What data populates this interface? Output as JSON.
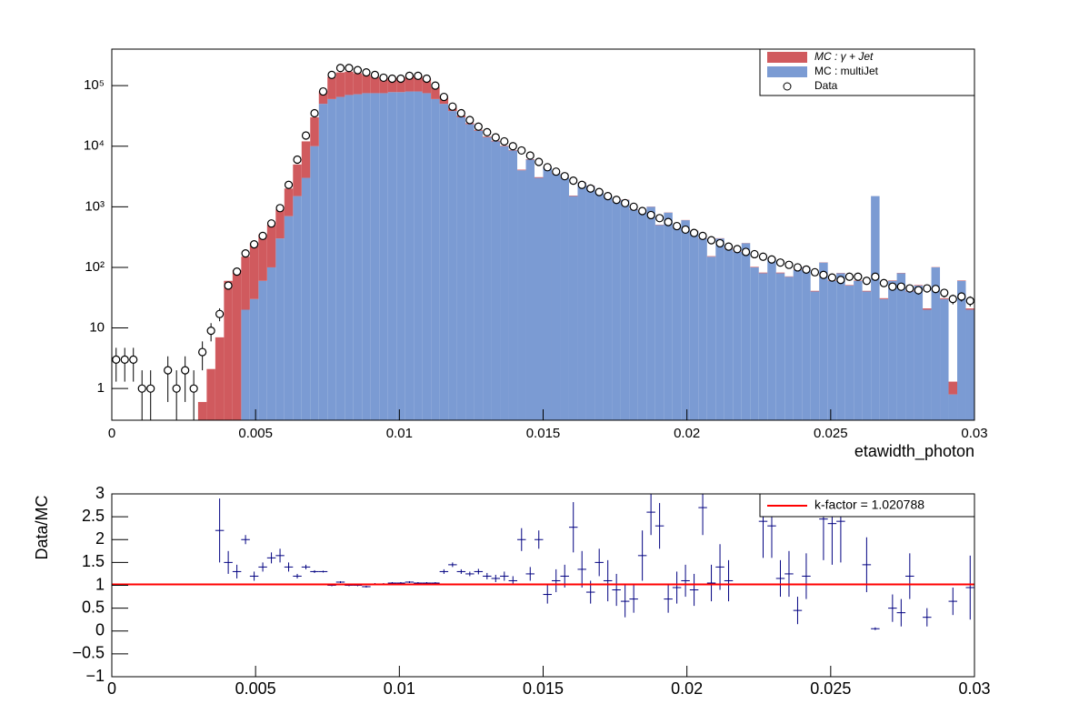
{
  "chart_data": [
    {
      "type": "histogram",
      "xlabel": "etawidth_photon",
      "log_y": true,
      "legend": "top-right",
      "xlim": [
        0,
        0.03
      ],
      "xticks": [
        0,
        0.005,
        0.01,
        0.015,
        0.02,
        0.025,
        0.03
      ],
      "ylim": [
        0.3,
        400000
      ],
      "yticks": [
        1,
        10,
        {
          "value": 100,
          "label": "10²"
        },
        {
          "value": 1000,
          "label": "10³"
        },
        {
          "value": 10000,
          "label": "10⁴"
        },
        {
          "value": 100000,
          "label": "10⁵"
        }
      ],
      "bins": [
        0,
        0.0003,
        0.0006,
        0.0009,
        0.0012,
        0.0015,
        0.0018,
        0.0021,
        0.0024,
        0.0027,
        0.003,
        0.0033,
        0.0036,
        0.0039,
        0.0042,
        0.0045,
        0.0048,
        0.0051,
        0.0054,
        0.0057,
        0.006,
        0.0063,
        0.0066,
        0.0069,
        0.0072,
        0.0075,
        0.0078,
        0.0081,
        0.0084,
        0.0087,
        0.009,
        0.0093,
        0.0096,
        0.0099,
        0.0102,
        0.0105,
        0.0108,
        0.0111,
        0.0114,
        0.0117,
        0.012,
        0.0123,
        0.0126,
        0.0129,
        0.0132,
        0.0135,
        0.0138,
        0.0141,
        0.0144,
        0.0147,
        0.015,
        0.0153,
        0.0156,
        0.0159,
        0.0162,
        0.0165,
        0.0168,
        0.0171,
        0.0174,
        0.0177,
        0.018,
        0.0183,
        0.0186,
        0.0189,
        0.0192,
        0.0195,
        0.0198,
        0.0201,
        0.0204,
        0.0207,
        0.021,
        0.0213,
        0.0216,
        0.0219,
        0.0222,
        0.0225,
        0.0228,
        0.0231,
        0.0234,
        0.0237,
        0.024,
        0.0243,
        0.0246,
        0.0249,
        0.0252,
        0.0255,
        0.0258,
        0.0261,
        0.0264,
        0.0267,
        0.027,
        0.0273,
        0.0276,
        0.0279,
        0.0282,
        0.0285,
        0.0288,
        0.0291,
        0.0294,
        0.0297,
        0.03
      ],
      "series": [
        {
          "name": "MC : multiJet",
          "color": "#7b9bd3",
          "values": [
            0,
            0,
            0,
            0,
            0,
            0,
            0,
            0,
            0,
            0,
            0,
            0,
            0,
            0,
            0,
            20,
            30,
            60,
            100,
            300,
            700,
            1500,
            3000,
            10000,
            50000,
            60000,
            65000,
            70000,
            72000,
            75000,
            75000,
            75000,
            78000,
            78000,
            80000,
            80000,
            75000,
            60000,
            50000,
            38000,
            30000,
            23000,
            18000,
            14000,
            12000,
            10000,
            8500,
            4000,
            6000,
            3000,
            4500,
            3500,
            3000,
            1500,
            2500,
            2200,
            1800,
            1500,
            1200,
            1300,
            900,
            800,
            1000,
            500,
            800,
            450,
            600,
            400,
            300,
            150,
            300,
            200,
            180,
            250,
            100,
            80,
            140,
            80,
            70,
            90,
            100,
            40,
            120,
            60,
            80,
            50,
            60,
            40,
            1500,
            30,
            60,
            80,
            40,
            50,
            20,
            100,
            30,
            0.8,
            60,
            20
          ]
        },
        {
          "name": "MC : γ + Jet",
          "color": "#d05a5e",
          "values": [
            0,
            0,
            0,
            0,
            0,
            0,
            0,
            0,
            0,
            0,
            0.6,
            2.1,
            7,
            60,
            90,
            130,
            220,
            290,
            400,
            600,
            1300,
            3500,
            9000,
            20000,
            30000,
            80000,
            100000,
            100000,
            88000,
            75000,
            65000,
            60000,
            57000,
            57000,
            60000,
            65000,
            55000,
            35000,
            15000,
            5000,
            2000,
            1000,
            600,
            400,
            300,
            200,
            150,
            100,
            100,
            80,
            60,
            50,
            40,
            30,
            30,
            25,
            20,
            15,
            15,
            12,
            10,
            10,
            8,
            6,
            6,
            5,
            5,
            4,
            4,
            3,
            3,
            3,
            2,
            2,
            2,
            2,
            2,
            2,
            1,
            1,
            1,
            1,
            1,
            1,
            1,
            1,
            1,
            1,
            1,
            1,
            1,
            1,
            1,
            1,
            1,
            1,
            1,
            0.5,
            1,
            1
          ]
        },
        {
          "name": "Data",
          "color": "#000000",
          "marker": "open-circle",
          "values": [
            3,
            3,
            3,
            1,
            1,
            null,
            2,
            1,
            2,
            1,
            4,
            9,
            17,
            50,
            85,
            170,
            240,
            330,
            530,
            950,
            2300,
            6000,
            15000,
            35000,
            80000,
            150000,
            195000,
            195000,
            180000,
            165000,
            150000,
            135000,
            130000,
            130000,
            145000,
            145000,
            130000,
            100000,
            65000,
            45000,
            35000,
            27000,
            21000,
            17000,
            14000,
            12000,
            10000,
            8500,
            7000,
            5500,
            4500,
            3800,
            3200,
            2700,
            2300,
            2000,
            1750,
            1500,
            1300,
            1150,
            1000,
            850,
            730,
            650,
            560,
            480,
            420,
            370,
            330,
            280,
            250,
            220,
            200,
            180,
            165,
            150,
            135,
            120,
            110,
            100,
            92,
            83,
            75,
            68,
            62,
            70,
            70,
            60,
            70,
            55,
            48,
            48,
            45,
            42,
            45,
            44,
            38,
            30,
            33,
            28
          ],
          "errors": [
            1.7,
            1.7,
            1.7,
            1,
            1,
            null,
            1.4,
            1,
            1.4,
            1,
            2,
            3,
            4.1,
            7,
            9.2,
            13,
            15.5,
            18,
            23,
            31,
            48,
            77,
            122,
            187,
            283,
            387,
            442,
            442,
            424,
            406,
            387,
            367,
            361,
            361,
            381,
            381,
            361,
            316,
            255,
            212,
            187,
            164,
            145,
            130,
            118,
            110,
            100,
            92,
            84,
            74,
            67,
            62,
            57,
            52,
            48,
            45,
            42,
            39,
            36,
            34,
            32,
            29,
            27,
            25,
            24,
            22,
            20,
            19,
            18,
            17,
            16,
            15,
            14,
            13,
            13,
            12,
            12,
            11,
            10,
            10,
            9.6,
            9.1,
            8.7,
            8.2,
            7.9,
            8.4,
            8.4,
            7.7,
            8.4,
            7.4,
            6.9,
            6.9,
            6.7,
            6.5,
            6.7,
            6.6,
            6.2,
            5.5,
            5.7,
            5.3
          ]
        }
      ]
    },
    {
      "type": "errorbar",
      "ylabel": "Data/MC",
      "legend": "top-right",
      "color": "#000080",
      "xlim": [
        0,
        0.03
      ],
      "xticks": [
        0,
        0.005,
        0.01,
        0.015,
        0.02,
        0.025,
        0.03
      ],
      "ylim": [
        -1,
        3
      ],
      "yticks": [
        {
          "value": -1,
          "label": "−1"
        },
        {
          "value": -0.5,
          "label": "−0.5"
        },
        0,
        0.5,
        1,
        1.5,
        2,
        2.5,
        3
      ],
      "xerr": 0.00015,
      "x": [
        0.00375,
        0.00405,
        0.00435,
        0.00465,
        0.00495,
        0.00525,
        0.00555,
        0.00585,
        0.00615,
        0.00645,
        0.00675,
        0.00705,
        0.00735,
        0.00765,
        0.00795,
        0.00825,
        0.00855,
        0.00885,
        0.00915,
        0.00945,
        0.00975,
        0.01005,
        0.01035,
        0.01065,
        0.01095,
        0.01125,
        0.01155,
        0.01185,
        0.01215,
        0.01245,
        0.01275,
        0.01305,
        0.01335,
        0.01365,
        0.01395,
        0.01425,
        0.01455,
        0.01485,
        0.01515,
        0.01545,
        0.01575,
        0.01605,
        0.01635,
        0.01665,
        0.01695,
        0.01725,
        0.01755,
        0.01785,
        0.01815,
        0.01845,
        0.01875,
        0.01905,
        0.01935,
        0.01965,
        0.01995,
        0.02025,
        0.02055,
        0.02085,
        0.02115,
        0.02145,
        0.02265,
        0.02295,
        0.02325,
        0.02355,
        0.02385,
        0.02415,
        0.02475,
        0.02505,
        0.02535,
        0.02625,
        0.02655,
        0.02715,
        0.02745,
        0.02775,
        0.02835,
        0.02925,
        0.02985
      ],
      "values": [
        2.2,
        1.5,
        1.3,
        2.0,
        1.2,
        1.4,
        1.6,
        1.65,
        1.4,
        1.2,
        1.4,
        1.3,
        1.3,
        1.0,
        1.07,
        1.0,
        1.0,
        0.97,
        1.03,
        1.03,
        1.05,
        1.05,
        1.07,
        1.05,
        1.05,
        1.05,
        1.3,
        1.45,
        1.3,
        1.25,
        1.3,
        1.2,
        1.15,
        1.2,
        1.1,
        2.0,
        1.25,
        2.0,
        0.8,
        1.1,
        1.2,
        2.27,
        1.35,
        0.85,
        1.5,
        1.1,
        0.9,
        0.65,
        0.7,
        1.65,
        2.6,
        2.3,
        0.7,
        0.95,
        1.1,
        0.9,
        2.7,
        1.05,
        1.4,
        1.1,
        2.4,
        2.3,
        1.15,
        1.25,
        0.45,
        1.2,
        2.45,
        2.35,
        2.4,
        1.45,
        0.05,
        0.5,
        0.4,
        1.2,
        0.3,
        0.65,
        0.95
      ],
      "errors": [
        0.7,
        0.25,
        0.15,
        0.1,
        0.1,
        0.1,
        0.12,
        0.15,
        0.1,
        0.05,
        0.05,
        0.03,
        0.02,
        0.02,
        0.02,
        0.02,
        0.02,
        0.02,
        0.02,
        0.02,
        0.02,
        0.02,
        0.02,
        0.02,
        0.02,
        0.02,
        0.05,
        0.05,
        0.05,
        0.05,
        0.06,
        0.07,
        0.08,
        0.1,
        0.1,
        0.25,
        0.15,
        0.2,
        0.2,
        0.25,
        0.25,
        0.55,
        0.4,
        0.25,
        0.3,
        0.45,
        0.35,
        0.35,
        0.3,
        0.55,
        0.5,
        0.5,
        0.3,
        0.35,
        0.35,
        0.35,
        0.6,
        0.4,
        0.5,
        0.45,
        0.8,
        0.7,
        0.4,
        0.5,
        0.3,
        0.5,
        0.9,
        0.9,
        0.9,
        0.6,
        0.03,
        0.3,
        0.3,
        0.5,
        0.2,
        0.3,
        0.7
      ],
      "kfactor": 1.020788,
      "kfactor_label": "k-factor = 1.020788",
      "fit_color": "#ff0000"
    }
  ]
}
